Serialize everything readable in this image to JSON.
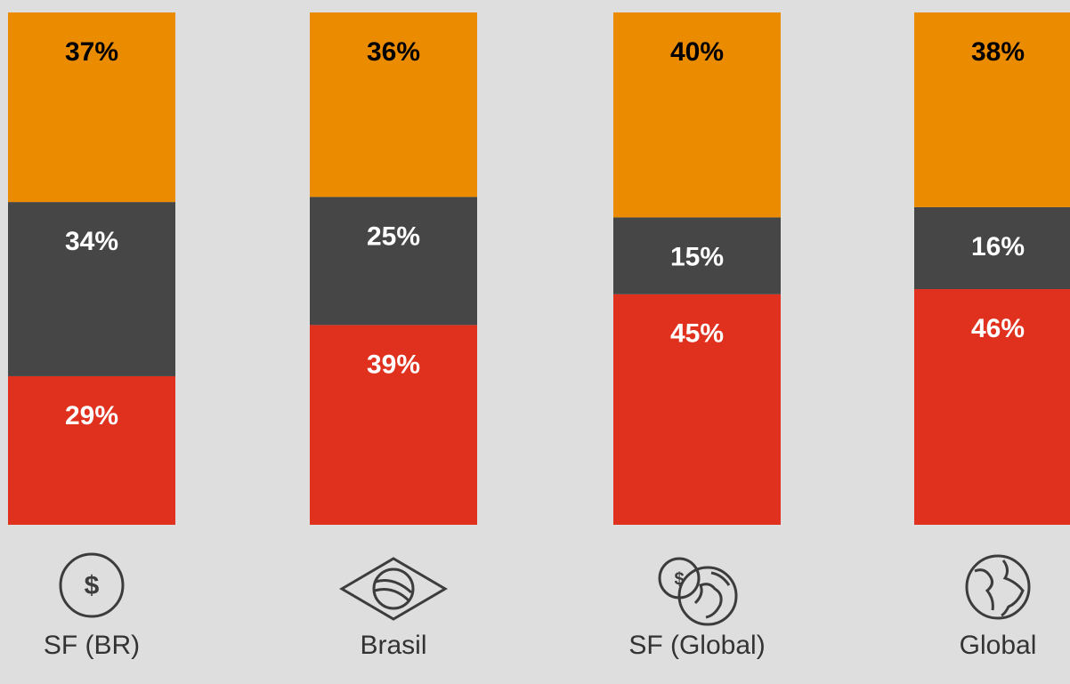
{
  "chart_data": {
    "type": "bar",
    "stacked": true,
    "categories": [
      "SF (BR)",
      "Brasil",
      "SF (Global)",
      "Global"
    ],
    "series": [
      {
        "color": "#e0301e",
        "label_color": "#ffffff",
        "values": [
          29,
          39,
          45,
          46
        ],
        "value_labels": [
          "29%",
          "39%",
          "45%",
          "46%"
        ]
      },
      {
        "color": "#464646",
        "label_color": "#ffffff",
        "values": [
          34,
          25,
          15,
          16
        ],
        "value_labels": [
          "34%",
          "25%",
          "15%",
          "16%"
        ]
      },
      {
        "color": "#eb8c00",
        "label_color": "#000000",
        "values": [
          37,
          36,
          40,
          38
        ],
        "value_labels": [
          "37%",
          "36%",
          "40%",
          "38%"
        ]
      }
    ],
    "ylim": [
      0,
      100
    ]
  }
}
